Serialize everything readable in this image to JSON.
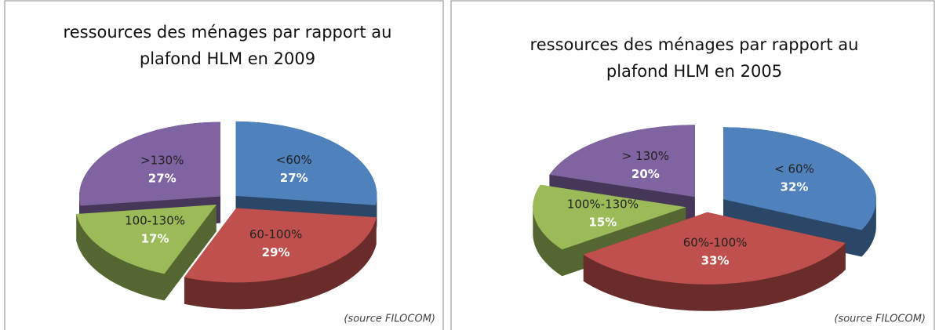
{
  "chart_data": [
    {
      "type": "pie",
      "title": [
        "ressources des ménages par rapport au",
        "plafond HLM en 2009"
      ],
      "categories": [
        "<60%",
        "60-100%",
        "100-130%",
        ">130%"
      ],
      "values": [
        27,
        29,
        17,
        27
      ],
      "value_labels": [
        "27%",
        "29%",
        "17%",
        "27%"
      ],
      "colors": [
        "#4f81bd",
        "#c0504d",
        "#9bbb59",
        "#8064a2"
      ],
      "source": "(source FILOCOM)"
    },
    {
      "type": "pie",
      "title": [
        "ressources des ménages par rapport au",
        "plafond HLM en 2005"
      ],
      "categories": [
        "< 60%",
        "60%-100%",
        "100%-130%",
        "> 130%"
      ],
      "values": [
        32,
        33,
        15,
        20
      ],
      "value_labels": [
        "32%",
        "33%",
        "15%",
        "20%"
      ],
      "colors": [
        "#4f81bd",
        "#c0504d",
        "#9bbb59",
        "#8064a2"
      ],
      "source": "(source FILOCOM)"
    }
  ]
}
